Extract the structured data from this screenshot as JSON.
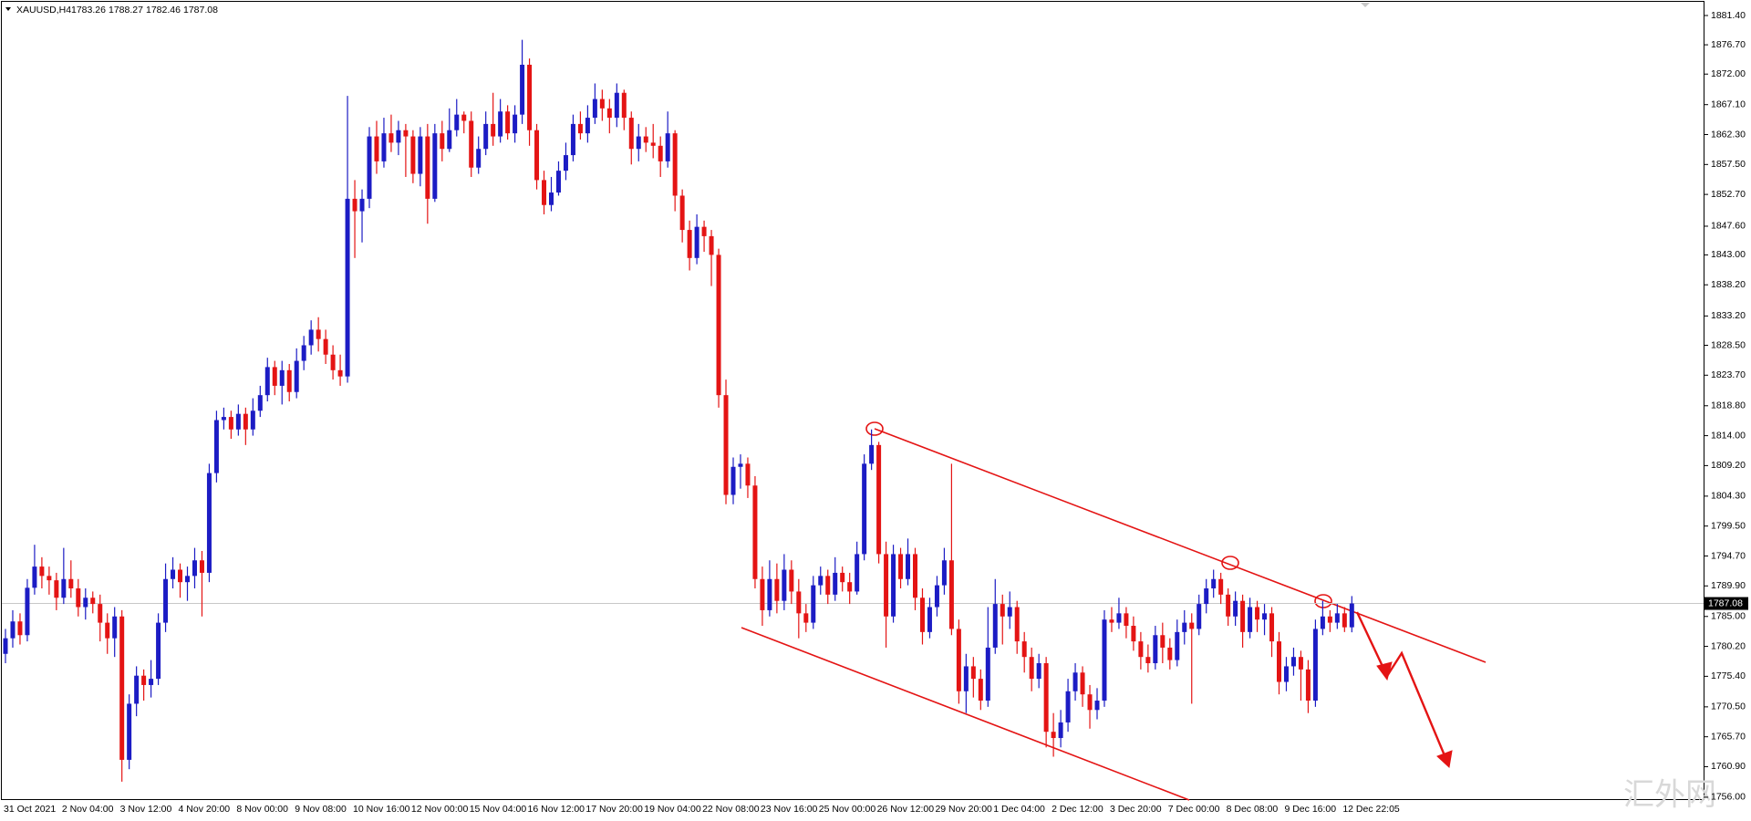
{
  "chart_data": {
    "type": "candlestick",
    "title": "XAUUSD,H4",
    "watermark": "汇外网",
    "up_color": "#1c1cc4",
    "down_color": "#e41414",
    "grid": false,
    "price_line_color": "#c8c8c8",
    "categories": [
      "31 Oct 2021",
      null,
      null,
      null,
      null,
      null,
      null,
      null,
      "2 Nov 04:00",
      null,
      null,
      null,
      null,
      null,
      null,
      null,
      "3 Nov 12:00",
      null,
      null,
      null,
      null,
      null,
      null,
      null,
      "4 Nov 20:00",
      null,
      null,
      null,
      null,
      null,
      null,
      null,
      "8 Nov 00:00",
      null,
      null,
      null,
      null,
      null,
      null,
      null,
      "9 Nov 08:00",
      null,
      null,
      null,
      null,
      null,
      null,
      null,
      "10 Nov 16:00",
      null,
      null,
      null,
      null,
      null,
      null,
      null,
      "12 Nov 00:00",
      null,
      null,
      null,
      null,
      null,
      null,
      null,
      "15 Nov 04:00",
      null,
      null,
      null,
      null,
      null,
      null,
      null,
      "16 Nov 12:00",
      null,
      null,
      null,
      null,
      null,
      null,
      null,
      "17 Nov 20:00",
      null,
      null,
      null,
      null,
      null,
      null,
      null,
      "19 Nov 04:00",
      null,
      null,
      null,
      null,
      null,
      null,
      null,
      "22 Nov 08:00",
      null,
      null,
      null,
      null,
      null,
      null,
      null,
      "23 Nov 16:00",
      null,
      null,
      null,
      null,
      null,
      null,
      null,
      "25 Nov 00:00",
      null,
      null,
      null,
      null,
      null,
      null,
      null,
      "26 Nov 12:00",
      null,
      null,
      null,
      null,
      null,
      null,
      null,
      "29 Nov 20:00",
      null,
      null,
      null,
      null,
      null,
      null,
      null,
      "1 Dec 04:00",
      null,
      null,
      null,
      null,
      null,
      null,
      null,
      "2 Dec 12:00",
      null,
      null,
      null,
      null,
      null,
      null,
      null,
      "3 Dec 20:00",
      null,
      null,
      null,
      null,
      null,
      null,
      null,
      "7 Dec 00:00",
      null,
      null,
      null,
      null,
      null,
      null,
      null,
      "8 Dec 08:00",
      null,
      null,
      null,
      null,
      null,
      null,
      null,
      "9 Dec 16:00",
      null,
      null,
      null,
      null,
      null,
      null,
      null,
      "12 Dec 22:05",
      null
    ],
    "open": [
      1779.0,
      1781.5,
      1784.2,
      1782.0,
      1789.6,
      1793.0,
      1791.5,
      1790.8,
      1788.0,
      1791.0,
      1789.5,
      1786.5,
      1788.0,
      1787.0,
      1784.0,
      1781.5,
      1785.0,
      1762.0,
      1771.0,
      1775.5,
      1774.0,
      1775.0,
      1784.0,
      1791.0,
      1792.5,
      1790.5,
      1791.5,
      1794.0,
      1792.0,
      1808.0,
      1816.5,
      1817.0,
      1815.0,
      1817.5,
      1815.0,
      1818.0,
      1820.5,
      1825.0,
      1822.0,
      1824.5,
      1821.0,
      1826.0,
      1828.5,
      1831.0,
      1829.5,
      1827.0,
      1824.5,
      1823.5,
      1852.0,
      1850.0,
      1852.0,
      1862.0,
      1858.0,
      1862.5,
      1861.0,
      1863.0,
      1862.0,
      1856.0,
      1862.0,
      1852.0,
      1862.5,
      1860.0,
      1863.0,
      1865.5,
      1864.5,
      1857.0,
      1860.0,
      1864.0,
      1862.0,
      1866.0,
      1862.5,
      1865.5,
      1873.5,
      1863.0,
      1855.0,
      1851.0,
      1853.0,
      1856.5,
      1859.0,
      1864.0,
      1862.5,
      1865.0,
      1868.0,
      1866.5,
      1865.0,
      1869.0,
      1865.0,
      1860.0,
      1862.0,
      1861.0,
      1860.5,
      1858.0,
      1862.5,
      1852.5,
      1847.0,
      1842.5,
      1847.5,
      1846.0,
      1843.0,
      1820.5,
      1804.5,
      1809.0,
      1809.5,
      1806.0,
      1791.0,
      1786.0,
      1791.0,
      1787.5,
      1792.5,
      1789.0,
      1785.5,
      1784.0,
      1790.0,
      1791.5,
      1788.5,
      1792.0,
      1790.5,
      1789.0,
      1795.0,
      1809.5,
      1812.5,
      1795.0,
      1785.0,
      1795.0,
      1791.0,
      1795.0,
      1788.0,
      1782.5,
      1786.5,
      1790.0,
      1794.0,
      1783.0,
      1773.0,
      1777.0,
      1775.0,
      1771.5,
      1780.0,
      1787.0,
      1785.0,
      1786.5,
      1781.0,
      1778.5,
      1775.0,
      1777.5,
      1766.5,
      1765.5,
      1768.0,
      1773.0,
      1776.0,
      1772.5,
      1770.0,
      1771.5,
      1784.5,
      1784.0,
      1785.5,
      1783.5,
      1781.0,
      1778.5,
      1777.5,
      1782.0,
      1780.0,
      1778.0,
      1782.5,
      1784.0,
      1783.0,
      1787.0,
      1789.5,
      1791.0,
      1788.5,
      1785.0,
      1787.5,
      1782.5,
      1786.5,
      1784.5,
      1785.5,
      1781.0,
      1774.5,
      1777.0,
      1778.5,
      1776.5,
      1771.5,
      1783.0,
      1785.0,
      1784.0,
      1785.5,
      1783.26
    ],
    "high": [
      1783.0,
      1786.0,
      1785.5,
      1791.0,
      1796.5,
      1794.5,
      1793.0,
      1792.0,
      1796.0,
      1794.0,
      1791.0,
      1789.5,
      1789.0,
      1788.5,
      1785.5,
      1786.5,
      1786.0,
      1772.5,
      1777.0,
      1776.5,
      1778.0,
      1785.5,
      1793.5,
      1794.5,
      1793.5,
      1793.0,
      1796.0,
      1795.5,
      1809.5,
      1818.0,
      1818.5,
      1818.0,
      1819.0,
      1818.5,
      1820.0,
      1822.0,
      1826.5,
      1826.0,
      1826.0,
      1825.5,
      1828.0,
      1830.0,
      1832.5,
      1833.0,
      1831.0,
      1828.5,
      1827.0,
      1868.5,
      1855.0,
      1853.5,
      1863.5,
      1864.5,
      1865.0,
      1865.5,
      1864.5,
      1864.0,
      1863.0,
      1863.5,
      1864.0,
      1864.0,
      1864.5,
      1866.5,
      1868.0,
      1866.0,
      1866.0,
      1862.0,
      1866.0,
      1869.0,
      1868.0,
      1867.0,
      1867.0,
      1877.5,
      1874.5,
      1864.0,
      1856.5,
      1855.5,
      1858.0,
      1861.0,
      1865.5,
      1866.0,
      1867.0,
      1870.5,
      1869.5,
      1868.0,
      1870.5,
      1869.5,
      1866.0,
      1864.0,
      1863.5,
      1864.0,
      1862.0,
      1866.0,
      1863.0,
      1853.5,
      1848.5,
      1849.5,
      1848.5,
      1847.0,
      1844.0,
      1823.0,
      1810.5,
      1811.0,
      1810.5,
      1807.5,
      1793.0,
      1794.0,
      1793.5,
      1795.0,
      1794.0,
      1791.0,
      1787.0,
      1791.5,
      1793.0,
      1792.5,
      1794.5,
      1793.0,
      1792.0,
      1797.0,
      1811.0,
      1815.0,
      1813.0,
      1797.0,
      1796.5,
      1796.0,
      1797.5,
      1796.0,
      1789.5,
      1788.0,
      1791.5,
      1796.0,
      1809.5,
      1784.5,
      1779.0,
      1778.5,
      1776.5,
      1786.5,
      1791.0,
      1788.5,
      1789.0,
      1787.5,
      1782.5,
      1780.0,
      1779.0,
      1778.5,
      1769.5,
      1770.0,
      1775.0,
      1777.5,
      1777.0,
      1774.0,
      1773.5,
      1786.0,
      1786.5,
      1788.0,
      1786.5,
      1785.0,
      1782.5,
      1780.5,
      1783.5,
      1784.0,
      1781.5,
      1784.5,
      1786.0,
      1785.5,
      1788.5,
      1791.0,
      1792.5,
      1792.0,
      1789.5,
      1789.0,
      1788.5,
      1788.0,
      1787.5,
      1787.0,
      1786.5,
      1782.5,
      1778.5,
      1780.0,
      1779.5,
      1778.0,
      1784.5,
      1787.5,
      1786.0,
      1787.0,
      1786.5,
      1788.27
    ],
    "low": [
      1777.5,
      1780.0,
      1780.5,
      1781.0,
      1788.5,
      1789.5,
      1788.5,
      1786.0,
      1787.0,
      1788.0,
      1785.0,
      1784.5,
      1785.5,
      1781.0,
      1779.0,
      1778.5,
      1758.5,
      1760.5,
      1769.0,
      1771.5,
      1772.0,
      1774.0,
      1782.5,
      1789.5,
      1788.0,
      1787.5,
      1789.5,
      1785.0,
      1790.5,
      1806.5,
      1815.0,
      1813.5,
      1814.0,
      1812.5,
      1814.0,
      1817.0,
      1819.5,
      1820.5,
      1819.0,
      1819.5,
      1820.0,
      1824.5,
      1827.0,
      1827.5,
      1825.5,
      1823.0,
      1822.0,
      1822.5,
      1842.5,
      1845.0,
      1850.5,
      1856.0,
      1857.0,
      1859.5,
      1859.0,
      1855.5,
      1854.5,
      1854.0,
      1848.0,
      1851.5,
      1858.0,
      1859.5,
      1862.0,
      1862.5,
      1855.5,
      1856.0,
      1859.0,
      1860.5,
      1861.0,
      1861.5,
      1861.0,
      1864.0,
      1860.5,
      1853.5,
      1849.5,
      1850.0,
      1852.5,
      1855.0,
      1858.0,
      1861.5,
      1861.0,
      1864.0,
      1864.5,
      1862.5,
      1863.5,
      1863.0,
      1857.5,
      1858.0,
      1859.5,
      1858.5,
      1855.5,
      1857.0,
      1850.0,
      1845.0,
      1840.5,
      1841.5,
      1843.5,
      1838.0,
      1818.5,
      1803.0,
      1803.0,
      1805.5,
      1804.0,
      1789.5,
      1783.5,
      1785.0,
      1785.5,
      1786.0,
      1787.0,
      1781.5,
      1782.5,
      1783.0,
      1788.5,
      1787.0,
      1787.5,
      1789.0,
      1787.0,
      1788.5,
      1794.0,
      1808.5,
      1793.5,
      1780.0,
      1784.0,
      1789.5,
      1790.0,
      1786.0,
      1780.5,
      1781.5,
      1785.0,
      1788.5,
      1782.0,
      1771.0,
      1769.5,
      1772.0,
      1770.0,
      1770.5,
      1779.0,
      1780.5,
      1783.0,
      1779.0,
      1776.0,
      1773.0,
      1773.5,
      1764.0,
      1762.5,
      1764.0,
      1766.5,
      1771.5,
      1770.5,
      1767.0,
      1768.5,
      1770.5,
      1782.5,
      1783.0,
      1781.5,
      1779.5,
      1776.5,
      1776.0,
      1776.5,
      1777.5,
      1776.5,
      1777.0,
      1780.5,
      1771.0,
      1782.0,
      1785.5,
      1788.0,
      1787.0,
      1783.5,
      1783.5,
      1780.0,
      1781.5,
      1782.5,
      1782.0,
      1778.5,
      1772.5,
      1773.0,
      1775.5,
      1771.5,
      1769.5,
      1770.5,
      1782.0,
      1782.5,
      1783.0,
      1782.5,
      1782.46
    ],
    "close": [
      1781.5,
      1784.2,
      1782.0,
      1789.6,
      1793.0,
      1791.5,
      1790.8,
      1788.0,
      1791.0,
      1789.5,
      1786.5,
      1788.0,
      1787.0,
      1784.0,
      1781.5,
      1785.0,
      1762.0,
      1771.0,
      1775.5,
      1774.0,
      1775.0,
      1784.0,
      1791.0,
      1792.5,
      1790.5,
      1791.5,
      1794.0,
      1792.0,
      1808.0,
      1816.5,
      1817.0,
      1815.0,
      1817.5,
      1815.0,
      1818.0,
      1820.5,
      1825.0,
      1822.0,
      1824.5,
      1821.0,
      1826.0,
      1828.5,
      1831.0,
      1829.5,
      1827.0,
      1824.5,
      1823.5,
      1852.0,
      1850.0,
      1852.0,
      1862.0,
      1858.0,
      1862.5,
      1861.0,
      1863.0,
      1862.0,
      1856.0,
      1862.0,
      1852.0,
      1862.5,
      1860.0,
      1863.0,
      1865.5,
      1864.5,
      1857.0,
      1860.0,
      1864.0,
      1862.0,
      1866.0,
      1862.5,
      1865.5,
      1873.5,
      1863.0,
      1855.0,
      1851.0,
      1853.0,
      1856.5,
      1859.0,
      1864.0,
      1862.5,
      1865.0,
      1868.0,
      1866.5,
      1865.0,
      1869.0,
      1865.0,
      1860.0,
      1862.0,
      1861.0,
      1860.5,
      1858.0,
      1862.5,
      1852.5,
      1847.0,
      1842.5,
      1847.5,
      1846.0,
      1843.0,
      1820.5,
      1804.5,
      1809.0,
      1809.5,
      1806.0,
      1791.0,
      1786.0,
      1791.0,
      1787.5,
      1792.5,
      1789.0,
      1785.5,
      1784.0,
      1790.0,
      1791.5,
      1788.5,
      1792.0,
      1790.5,
      1789.0,
      1795.0,
      1809.5,
      1812.5,
      1795.0,
      1785.0,
      1795.0,
      1791.0,
      1795.0,
      1788.0,
      1782.5,
      1786.5,
      1790.0,
      1794.0,
      1783.0,
      1773.0,
      1777.0,
      1775.0,
      1771.5,
      1780.0,
      1787.0,
      1785.0,
      1786.5,
      1781.0,
      1778.5,
      1775.0,
      1777.5,
      1766.5,
      1765.5,
      1768.0,
      1773.0,
      1776.0,
      1772.5,
      1770.0,
      1771.5,
      1784.5,
      1784.0,
      1785.5,
      1783.5,
      1781.0,
      1778.5,
      1777.5,
      1782.0,
      1780.0,
      1778.0,
      1782.5,
      1784.0,
      1783.0,
      1787.0,
      1789.5,
      1791.0,
      1788.5,
      1785.0,
      1787.5,
      1782.5,
      1786.5,
      1784.5,
      1785.5,
      1781.0,
      1774.5,
      1777.0,
      1778.5,
      1776.5,
      1771.5,
      1783.0,
      1785.0,
      1784.0,
      1785.5,
      1783.26,
      1787.08
    ],
    "ylim": [
      1755.7,
      1883.3
    ],
    "yticks": [
      {
        "value": 1881.4,
        "label": "1881.40"
      },
      {
        "value": 1876.7,
        "label": "1876.70"
      },
      {
        "value": 1872.0,
        "label": "1872.00"
      },
      {
        "value": 1867.1,
        "label": "1867.10"
      },
      {
        "value": 1862.3,
        "label": "1862.30"
      },
      {
        "value": 1857.5,
        "label": "1857.50"
      },
      {
        "value": 1852.7,
        "label": "1852.70"
      },
      {
        "value": 1847.6,
        "label": "1847.60"
      },
      {
        "value": 1843.0,
        "label": "1843.00"
      },
      {
        "value": 1838.2,
        "label": "1838.20"
      },
      {
        "value": 1833.2,
        "label": "1833.20"
      },
      {
        "value": 1828.5,
        "label": "1828.50"
      },
      {
        "value": 1823.7,
        "label": "1823.70"
      },
      {
        "value": 1818.8,
        "label": "1818.80"
      },
      {
        "value": 1814.0,
        "label": "1814.00"
      },
      {
        "value": 1809.2,
        "label": "1809.20"
      },
      {
        "value": 1804.3,
        "label": "1804.30"
      },
      {
        "value": 1799.5,
        "label": "1799.50"
      },
      {
        "value": 1794.7,
        "label": "1794.70"
      },
      {
        "value": 1789.9,
        "label": "1789.90"
      },
      {
        "value": 1785.0,
        "label": "1785.00"
      },
      {
        "value": 1780.2,
        "label": "1780.20"
      },
      {
        "value": 1775.4,
        "label": "1775.40"
      },
      {
        "value": 1770.5,
        "label": "1770.50"
      },
      {
        "value": 1765.7,
        "label": "1765.70"
      },
      {
        "value": 1760.9,
        "label": "1760.90"
      },
      {
        "value": 1756.0,
        "label": "1756.00"
      }
    ]
  }
}
